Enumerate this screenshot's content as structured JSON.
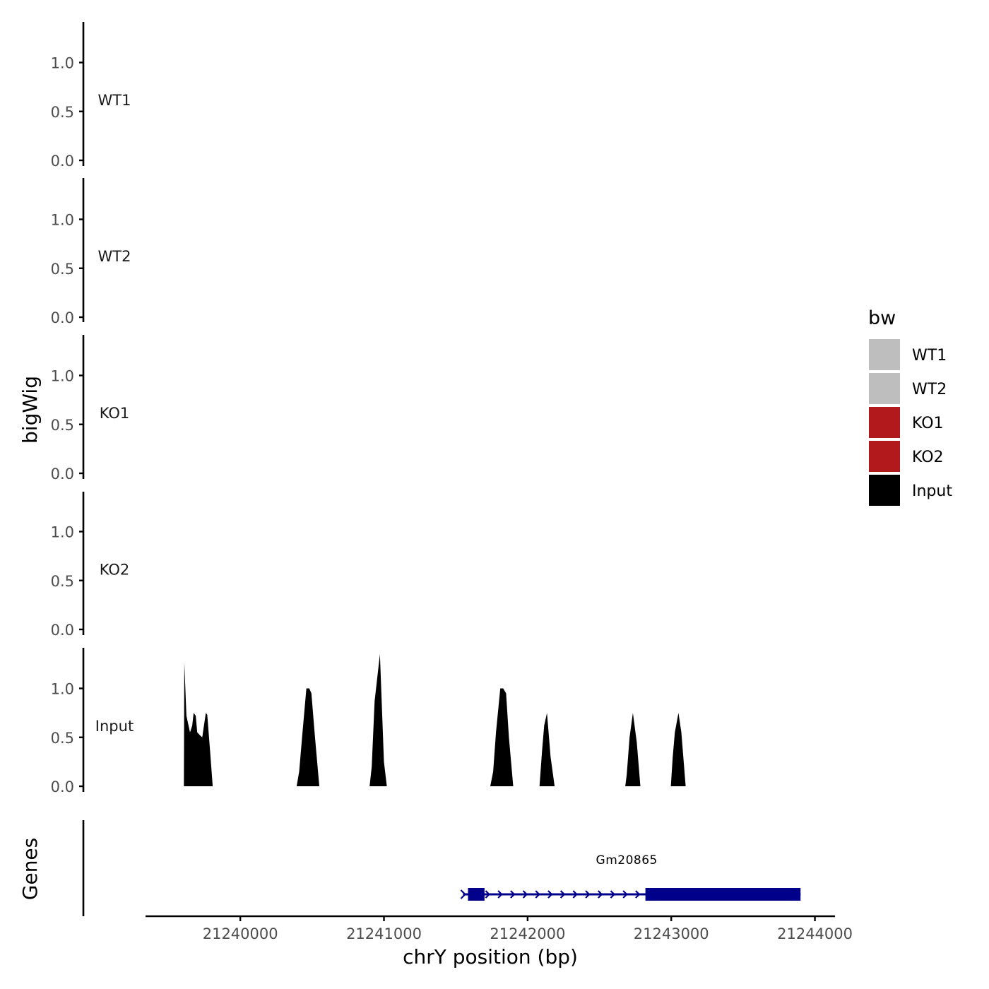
{
  "chart_data": {
    "type": "area",
    "xlabel": "chrY position (bp)",
    "ylabel": "bigWig",
    "genes_label": "Genes",
    "xlim": [
      21239350,
      21244130
    ],
    "x_ticks": [
      21240000,
      21241000,
      21242000,
      21243000,
      21244000
    ],
    "x_tick_labels": [
      "21240000",
      "21241000",
      "21242000",
      "21243000",
      "21244000"
    ],
    "ylim": [
      0,
      1.42
    ],
    "y_ticks": [
      0,
      0.5,
      1
    ],
    "y_tick_labels": [
      "0.0",
      "0.5",
      "1.0"
    ],
    "legend": {
      "title": "bw",
      "position": "right",
      "entries": [
        {
          "name": "WT1",
          "color": "#bebebe"
        },
        {
          "name": "WT2",
          "color": "#bebebe"
        },
        {
          "name": "KO1",
          "color": "#b2191c"
        },
        {
          "name": "KO2",
          "color": "#b2191c"
        },
        {
          "name": "Input",
          "color": "#000000"
        }
      ]
    },
    "series": [
      {
        "name": "WT1",
        "color": "#bebebe",
        "points": []
      },
      {
        "name": "WT2",
        "color": "#bebebe",
        "points": []
      },
      {
        "name": "KO1",
        "color": "#b2191c",
        "points": []
      },
      {
        "name": "KO2",
        "color": "#b2191c",
        "points": []
      },
      {
        "name": "Input",
        "color": "#000000",
        "points": [
          [
            21239607,
            0
          ],
          [
            21239610,
            1.27
          ],
          [
            21239625,
            0.72
          ],
          [
            21239650,
            0.55
          ],
          [
            21239665,
            0.62
          ],
          [
            21239675,
            0.75
          ],
          [
            21239690,
            0.72
          ],
          [
            21239700,
            0.55
          ],
          [
            21239720,
            0.52
          ],
          [
            21239735,
            0.5
          ],
          [
            21239745,
            0.6
          ],
          [
            21239760,
            0.75
          ],
          [
            21239770,
            0.73
          ],
          [
            21239790,
            0.35
          ],
          [
            21239808,
            0
          ],
          [
            21240392,
            0
          ],
          [
            21240410,
            0.15
          ],
          [
            21240430,
            0.5
          ],
          [
            21240460,
            1.0
          ],
          [
            21240480,
            1.0
          ],
          [
            21240495,
            0.95
          ],
          [
            21240520,
            0.5
          ],
          [
            21240550,
            0
          ],
          [
            21240900,
            0
          ],
          [
            21240915,
            0.2
          ],
          [
            21240935,
            0.87
          ],
          [
            21240972,
            1.35
          ],
          [
            21241000,
            0.25
          ],
          [
            21241020,
            0
          ],
          [
            21241740,
            0
          ],
          [
            21241760,
            0.15
          ],
          [
            21241780,
            0.55
          ],
          [
            21241810,
            1.0
          ],
          [
            21241830,
            1.0
          ],
          [
            21241850,
            0.95
          ],
          [
            21241870,
            0.5
          ],
          [
            21241900,
            0
          ],
          [
            21242083,
            0
          ],
          [
            21242100,
            0.35
          ],
          [
            21242115,
            0.62
          ],
          [
            21242135,
            0.75
          ],
          [
            21242160,
            0.3
          ],
          [
            21242188,
            0
          ],
          [
            21242680,
            0
          ],
          [
            21242690,
            0.12
          ],
          [
            21242710,
            0.5
          ],
          [
            21242733,
            0.75
          ],
          [
            21242760,
            0.45
          ],
          [
            21242785,
            0
          ],
          [
            21242997,
            0
          ],
          [
            21243010,
            0.3
          ],
          [
            21243025,
            0.55
          ],
          [
            21243050,
            0.75
          ],
          [
            21243070,
            0.55
          ],
          [
            21243100,
            0
          ]
        ]
      }
    ],
    "gene": {
      "name": "Gm20865",
      "color": "#00008b",
      "start": 21241580,
      "end": 21243900,
      "direction": "+",
      "exons": [
        [
          21241585,
          21241700
        ],
        [
          21242820,
          21243900
        ]
      ]
    }
  }
}
